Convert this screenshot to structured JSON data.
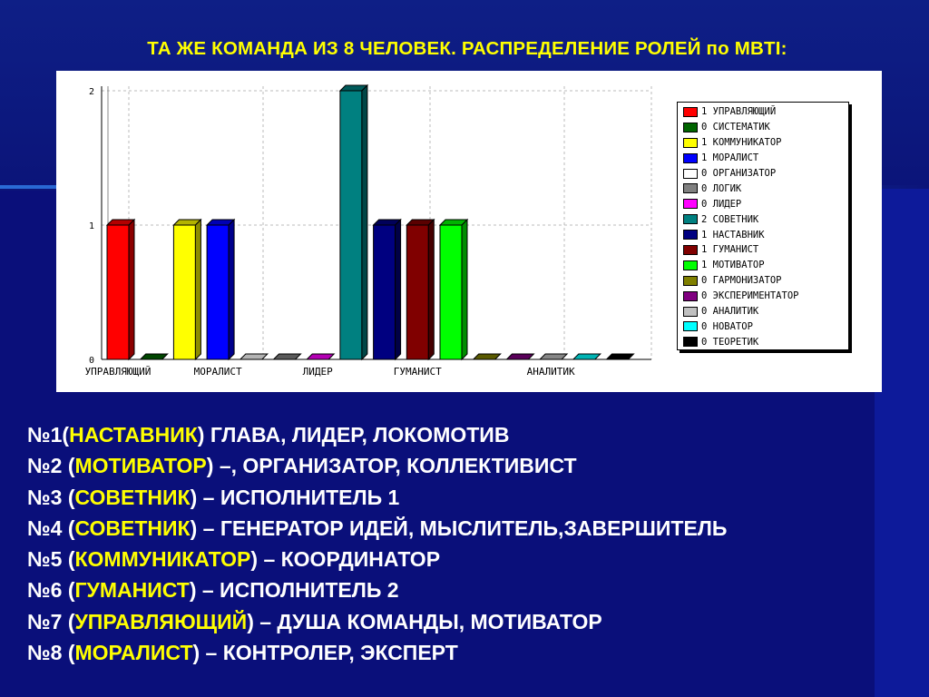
{
  "title": "ТА ЖЕ КОМАНДА ИЗ 8 ЧЕЛОВЕК. РАСПРЕДЕЛЕНИЕ РОЛЕЙ по MBTI:",
  "chart_data": {
    "type": "bar",
    "title": "",
    "xlabel": "",
    "ylabel": "",
    "ylim": [
      0,
      2
    ],
    "yticks": [
      "0",
      "1",
      "2"
    ],
    "grid": true,
    "legend_position": "right",
    "categories": [
      "УПРАВЛЯЮЩИЙ",
      "СИСТЕМАТИК",
      "КОММУНИКАТОР",
      "МОРАЛИСТ",
      "ОРГАНИЗАТОР",
      "ЛОГИК",
      "ЛИДЕР",
      "СОВЕТНИК",
      "НАСТАВНИК",
      "ГУМАНИСТ",
      "МОТИВАТОР",
      "ГАРМОНИЗАТОР",
      "ЭКСПЕРИМЕНТАТОР",
      "АНАЛИТИК",
      "НОВАТОР",
      "ТЕОРЕТИК"
    ],
    "values": [
      1,
      0,
      1,
      1,
      0,
      0,
      0,
      2,
      1,
      1,
      1,
      0,
      0,
      0,
      0,
      0
    ],
    "colors": [
      "#ff0000",
      "#006400",
      "#ffff00",
      "#0000ff",
      "#ffffff",
      "#808080",
      "#ff00ff",
      "#008080",
      "#000080",
      "#800000",
      "#00ff00",
      "#808000",
      "#800080",
      "#c0c0c0",
      "#00ffff",
      "#000000"
    ],
    "x_tick_labels": [
      {
        "index": 0,
        "label": "УПРАВЛЯЮЩИЙ"
      },
      {
        "index": 3,
        "label": "МОРАЛИСТ"
      },
      {
        "index": 6,
        "label": "ЛИДЕР"
      },
      {
        "index": 9,
        "label": "ГУМАНИСТ"
      },
      {
        "index": 13,
        "label": "АНАЛИТИК"
      }
    ],
    "legend": [
      "1 УПРАВЛЯЮЩИЙ",
      "0 СИСТЕМАТИК",
      "1 КОММУНИКАТОР",
      "1 МОРАЛИСТ",
      "0 ОРГАНИЗАТОР",
      "0 ЛОГИК",
      "0 ЛИДЕР",
      "2 СОВЕТНИК",
      "1 НАСТАВНИК",
      "1 ГУМАНИСТ",
      "1 МОТИВАТОР",
      "0 ГАРМОНИЗАТОР",
      "0 ЭКСПЕРИМЕНТАТОР",
      "0 АНАЛИТИК",
      "0 НОВАТОР",
      "0 ТЕОРЕТИК"
    ]
  },
  "lines": [
    {
      "prefix": "№1(",
      "role": "НАСТАВНИК",
      "suffix": ") ГЛАВА, ЛИДЕР, ЛОКОМОТИВ"
    },
    {
      "prefix": "№2 (",
      "role": "МОТИВАТОР",
      "suffix": ") –, ОРГАНИЗАТОР, КОЛЛЕКТИВИСТ"
    },
    {
      "prefix": "№3 (",
      "role": "СОВЕТНИК",
      "suffix": ") – ИСПОЛНИТЕЛЬ 1"
    },
    {
      "prefix": "№4 (",
      "role": "СОВЕТНИК",
      "suffix": ") – ГЕНЕРАТОР ИДЕЙ, МЫСЛИТЕЛЬ,ЗАВЕРШИТЕЛЬ"
    },
    {
      "prefix": "№5 (",
      "role": "КОММУНИКАТОР",
      "suffix": ") – КООРДИНАТОР"
    },
    {
      "prefix": "№6 (",
      "role": "ГУМАНИСТ",
      "suffix": ") – ИСПОЛНИТЕЛЬ 2"
    },
    {
      "prefix": "№7 (",
      "role": "УПРАВЛЯЮЩИЙ",
      "suffix": ") – ДУША КОМАНДЫ, МОТИВАТОР"
    },
    {
      "prefix": "№8 (",
      "role": "МОРАЛИСТ",
      "suffix": ") – КОНТРОЛЕР, ЭКСПЕРТ"
    }
  ]
}
